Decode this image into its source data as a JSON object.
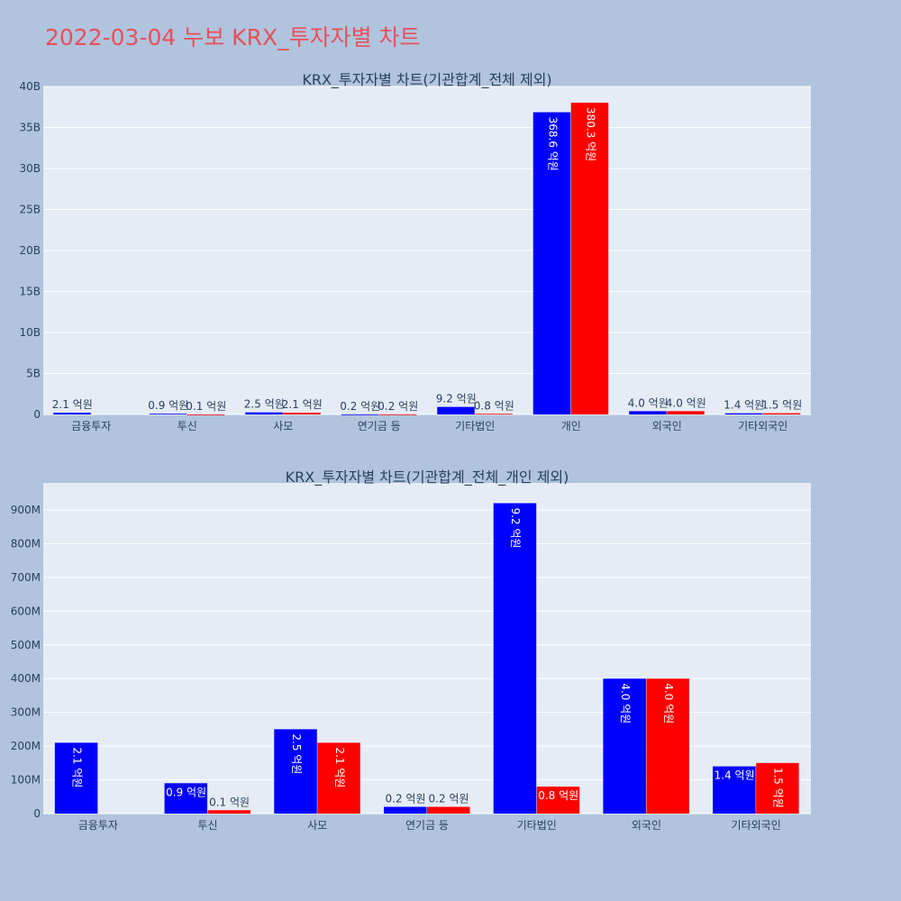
{
  "page": {
    "title": "2022-03-04 누보 KRX_투자자별 차트"
  },
  "chart_data": [
    {
      "type": "bar",
      "title": "KRX_투자자별 차트(기관합계_전체 제외)",
      "categories": [
        "금융투자",
        "투신",
        "사모",
        "연기금 등",
        "기타법인",
        "개인",
        "외국인",
        "기타외국인"
      ],
      "series": [
        {
          "color": "#0000ff",
          "values": [
            210000000,
            90000000,
            250000000,
            20000000,
            920000000,
            36860000000,
            400000000,
            140000000
          ],
          "labels": [
            "2.1 억원",
            "0.9 억원",
            "2.5 억원",
            "0.2 억원",
            "9.2 억원",
            "368.6 억원",
            "4.0 억원",
            "1.4 억원"
          ]
        },
        {
          "color": "#ff0000",
          "values": [
            0,
            10000000,
            210000000,
            20000000,
            80000000,
            38030000000,
            400000000,
            150000000
          ],
          "labels": [
            "",
            "0.1 억원",
            "2.1 억원",
            "0.2 억원",
            "0.8 억원",
            "380.3 억원",
            "4.0 억원",
            "1.5 억원"
          ]
        }
      ],
      "ylim": [
        0,
        40000000000
      ],
      "yticks": [
        0,
        5000000000,
        10000000000,
        15000000000,
        20000000000,
        25000000000,
        30000000000,
        35000000000,
        40000000000
      ],
      "yticklabels": [
        "0",
        "5B",
        "10B",
        "15B",
        "20B",
        "25B",
        "30B",
        "35B",
        "40B"
      ],
      "grid": true
    },
    {
      "type": "bar",
      "title": "KRX_투자자별 차트(기관합계_전체_개인 제외)",
      "categories": [
        "금융투자",
        "투신",
        "사모",
        "연기금 등",
        "기타법인",
        "외국인",
        "기타외국인"
      ],
      "series": [
        {
          "color": "#0000ff",
          "values": [
            210000000,
            90000000,
            250000000,
            20000000,
            920000000,
            400000000,
            140000000
          ],
          "labels": [
            "2.1 억원",
            "0.9 억원",
            "2.5 억원",
            "0.2 억원",
            "9.2 억원",
            "4.0 억원",
            "1.4 억원"
          ]
        },
        {
          "color": "#ff0000",
          "values": [
            0,
            10000000,
            210000000,
            20000000,
            80000000,
            400000000,
            150000000
          ],
          "labels": [
            "",
            "0.1 억원",
            "2.1 억원",
            "0.2 억원",
            "0.8 억원",
            "4.0 억원",
            "1.5 억원"
          ]
        }
      ],
      "ylim": [
        0,
        980000000
      ],
      "yticks": [
        0,
        100000000,
        200000000,
        300000000,
        400000000,
        500000000,
        600000000,
        700000000,
        800000000,
        900000000
      ],
      "yticklabels": [
        "0",
        "100M",
        "200M",
        "300M",
        "400M",
        "500M",
        "600M",
        "700M",
        "800M",
        "900M"
      ],
      "grid": true
    }
  ]
}
